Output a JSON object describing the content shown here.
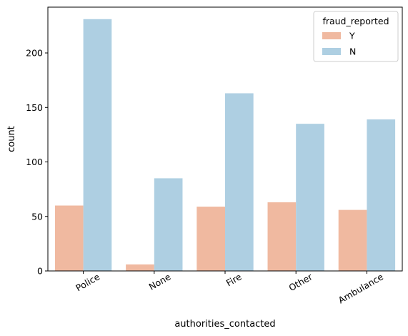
{
  "chart_data": {
    "type": "bar",
    "categories": [
      "Police",
      "None",
      "Fire",
      "Other",
      "Ambulance"
    ],
    "series": [
      {
        "name": "Y",
        "values": [
          60,
          6,
          59,
          63,
          56
        ],
        "color": "#f0b9a0"
      },
      {
        "name": "N",
        "values": [
          231,
          85,
          163,
          135,
          139
        ],
        "color": "#aecfe2"
      }
    ],
    "title": "",
    "xlabel": "authorities_contacted",
    "ylabel": "count",
    "ylim": [
      0,
      242
    ],
    "yticks": [
      0,
      50,
      100,
      150,
      200
    ],
    "xtick_rotation": 30,
    "grid": false,
    "legend": {
      "title": "fraud_reported",
      "placement": "top-right"
    }
  }
}
